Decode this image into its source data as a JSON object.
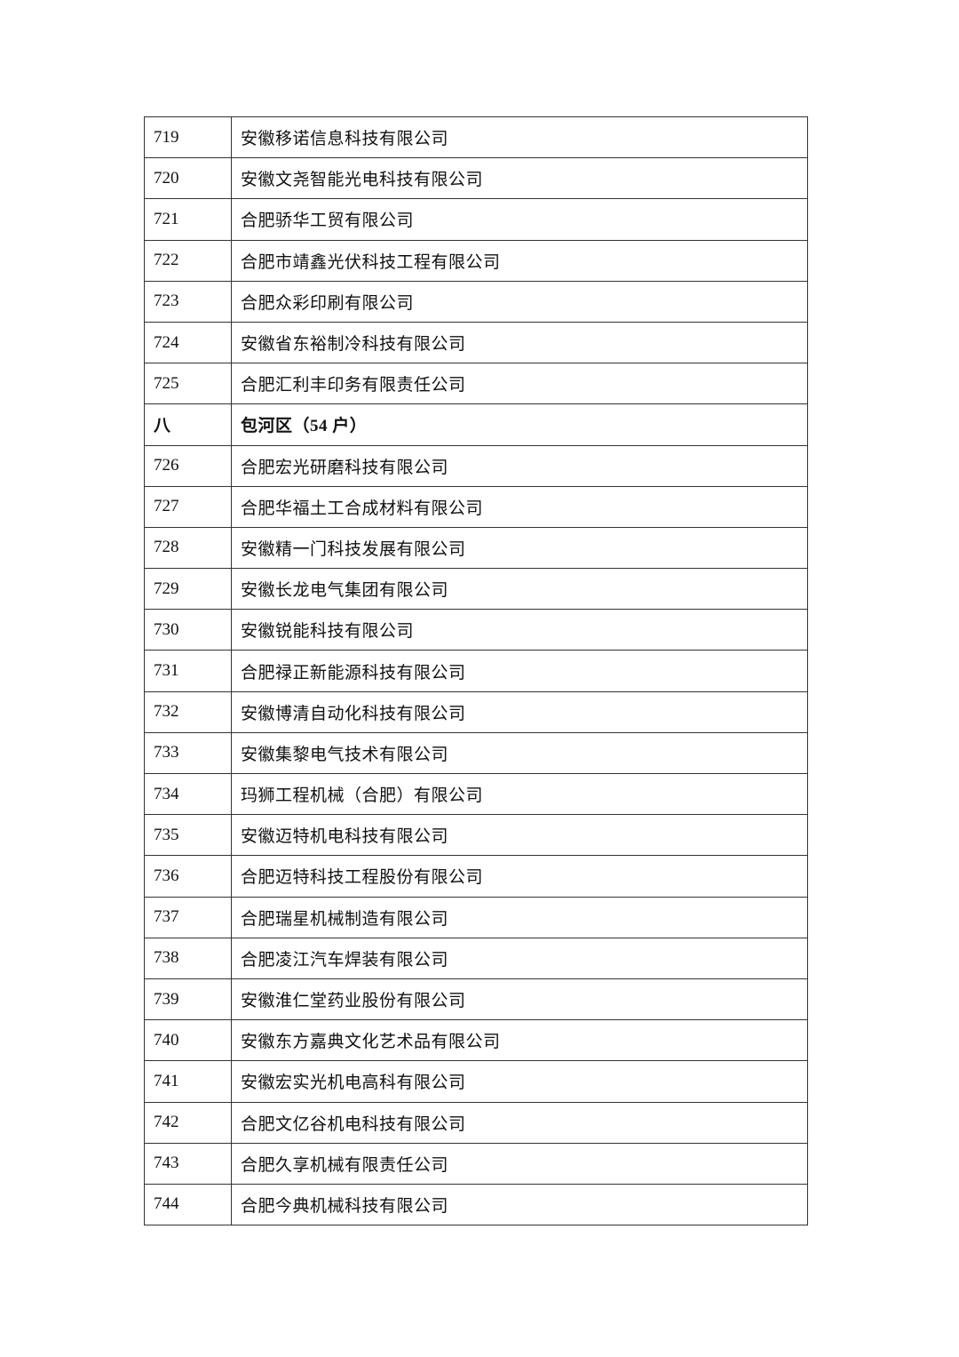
{
  "table": {
    "rows": [
      [
        "719",
        "安徽移诺信息科技有限公司"
      ],
      [
        "720",
        "安徽文尧智能光电科技有限公司"
      ],
      [
        "721",
        "合肥骄华工贸有限公司"
      ],
      [
        "722",
        "合肥市靖鑫光伏科技工程有限公司"
      ],
      [
        "723",
        "合肥众彩印刷有限公司"
      ],
      [
        "724",
        "安徽省东裕制冷科技有限公司"
      ],
      [
        "725",
        "合肥汇利丰印务有限责任公司"
      ],
      [
        "八",
        "包河区（54 户）"
      ],
      [
        "726",
        "合肥宏光研磨科技有限公司"
      ],
      [
        "727",
        "合肥华福土工合成材料有限公司"
      ],
      [
        "728",
        "安徽精一门科技发展有限公司"
      ],
      [
        "729",
        "安徽长龙电气集团有限公司"
      ],
      [
        "730",
        "安徽锐能科技有限公司"
      ],
      [
        "731",
        "合肥禄正新能源科技有限公司"
      ],
      [
        "732",
        "安徽博清自动化科技有限公司"
      ],
      [
        "733",
        "安徽集黎电气技术有限公司"
      ],
      [
        "734",
        "玛狮工程机械（合肥）有限公司"
      ],
      [
        "735",
        "安徽迈特机电科技有限公司"
      ],
      [
        "736",
        "合肥迈特科技工程股份有限公司"
      ],
      [
        "737",
        "合肥瑞星机械制造有限公司"
      ],
      [
        "738",
        "合肥凌江汽车焊装有限公司"
      ],
      [
        "739",
        "安徽淮仁堂药业股份有限公司"
      ],
      [
        "740",
        "安徽东方嘉典文化艺术品有限公司"
      ],
      [
        "741",
        "安徽宏实光机电高科有限公司"
      ],
      [
        "742",
        "合肥文亿谷机电科技有限公司"
      ],
      [
        "743",
        "合肥久享机械有限责任公司"
      ],
      [
        "744",
        "合肥今典机械科技有限公司"
      ]
    ]
  }
}
